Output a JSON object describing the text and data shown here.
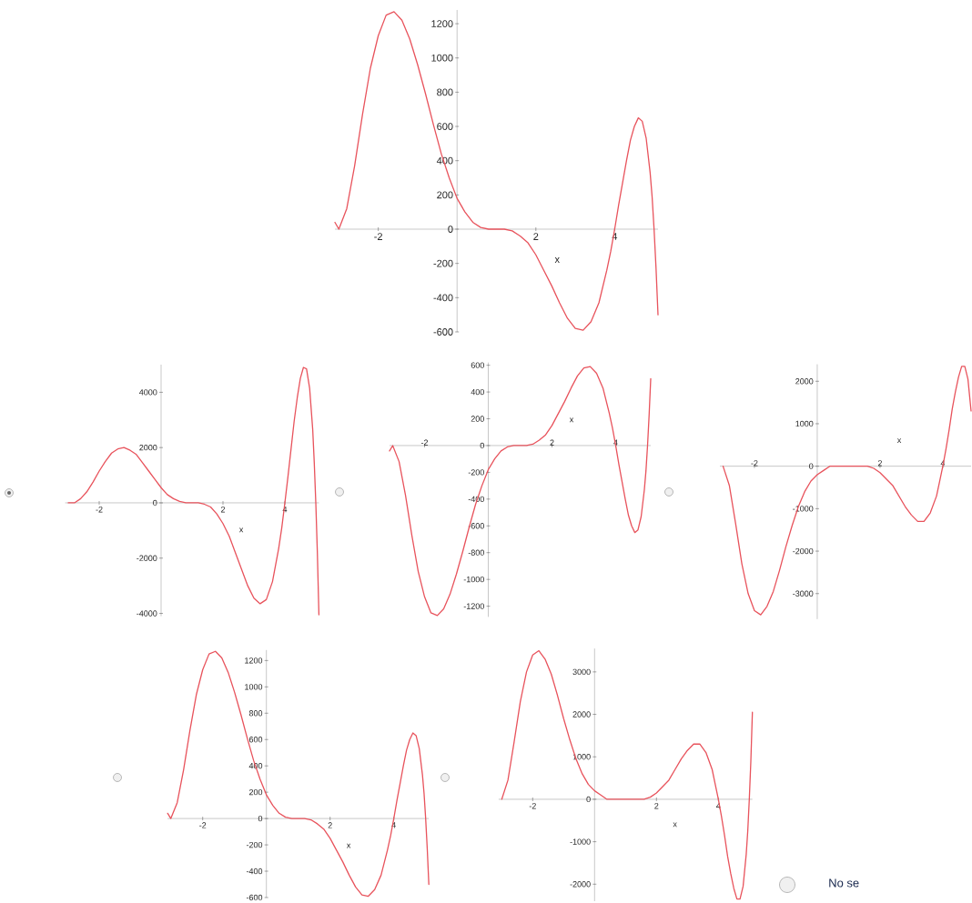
{
  "chart_data": [
    {
      "type": "line",
      "xlabel": "x",
      "xlim": [
        -3.1,
        5.1
      ],
      "ylim": [
        -600,
        1280
      ],
      "xticks": [
        -2,
        2,
        4
      ],
      "yticks": [
        -600,
        -400,
        -200,
        0,
        200,
        400,
        600,
        800,
        1000,
        1200
      ],
      "x": [
        -3.1,
        -3,
        -2.8,
        -2.6,
        -2.4,
        -2.2,
        -2,
        -1.8,
        -1.6,
        -1.4,
        -1.2,
        -1,
        -0.8,
        -0.6,
        -0.4,
        -0.2,
        0,
        0.2,
        0.4,
        0.6,
        0.8,
        1,
        1.2,
        1.4,
        1.6,
        1.8,
        2,
        2.2,
        2.4,
        2.6,
        2.8,
        3,
        3.2,
        3.4,
        3.6,
        3.8,
        3.9,
        4,
        4.1,
        4.2,
        4.3,
        4.4,
        4.5,
        4.6,
        4.7,
        4.8,
        4.9,
        4.95,
        5,
        5.05,
        5.1
      ],
      "series": [
        {
          "color": "#e8535c",
          "values": [
            40,
            0,
            120,
            370,
            670,
            940,
            1130,
            1250,
            1270,
            1220,
            1110,
            960,
            790,
            610,
            440,
            300,
            180,
            100,
            40,
            10,
            0,
            0,
            0,
            -10,
            -40,
            -80,
            -150,
            -240,
            -330,
            -430,
            -520,
            -580,
            -590,
            -540,
            -430,
            -240,
            -130,
            0,
            140,
            270,
            400,
            520,
            600,
            650,
            630,
            530,
            330,
            190,
            0,
            -230,
            -500
          ]
        }
      ]
    },
    {
      "type": "line",
      "xlabel": "x",
      "xlim": [
        -3.1,
        5.1
      ],
      "ylim": [
        -4100,
        5000
      ],
      "xticks": [
        -2,
        2,
        4
      ],
      "yticks": [
        -4000,
        -2000,
        0,
        2000,
        4000
      ],
      "x": [
        -3,
        -2.8,
        -2.6,
        -2.4,
        -2.2,
        -2,
        -1.8,
        -1.6,
        -1.4,
        -1.2,
        -1,
        -0.8,
        -0.6,
        -0.4,
        -0.2,
        0,
        0.2,
        0.4,
        0.6,
        0.8,
        1,
        1.2,
        1.4,
        1.6,
        1.8,
        2,
        2.2,
        2.4,
        2.6,
        2.8,
        3,
        3.2,
        3.4,
        3.6,
        3.8,
        3.9,
        4,
        4.1,
        4.2,
        4.3,
        4.4,
        4.5,
        4.6,
        4.7,
        4.8,
        4.9,
        4.95,
        5,
        5.05,
        5.1
      ],
      "series": [
        {
          "color": "#e8535c",
          "values": [
            0,
            0,
            150,
            400,
            750,
            1150,
            1500,
            1800,
            1950,
            2000,
            1900,
            1750,
            1450,
            1150,
            850,
            550,
            300,
            150,
            50,
            0,
            0,
            0,
            -50,
            -150,
            -400,
            -750,
            -1200,
            -1800,
            -2400,
            -3000,
            -3450,
            -3650,
            -3500,
            -2850,
            -1650,
            -900,
            0,
            950,
            1950,
            2950,
            3800,
            4500,
            4900,
            4850,
            4150,
            2650,
            1450,
            0,
            -1800,
            -4050
          ]
        }
      ]
    },
    {
      "type": "line",
      "xlabel": "x",
      "xlim": [
        -3.1,
        5.1
      ],
      "ylim": [
        -1280,
        620
      ],
      "xticks": [
        -2,
        2,
        4
      ],
      "yticks": [
        -1200,
        -1000,
        -800,
        -600,
        -400,
        -200,
        0,
        200,
        400,
        600
      ],
      "x": [
        -3.1,
        -3,
        -2.8,
        -2.6,
        -2.4,
        -2.2,
        -2,
        -1.8,
        -1.6,
        -1.4,
        -1.2,
        -1,
        -0.8,
        -0.6,
        -0.4,
        -0.2,
        0,
        0.2,
        0.4,
        0.6,
        0.8,
        1,
        1.2,
        1.4,
        1.6,
        1.8,
        2,
        2.2,
        2.4,
        2.6,
        2.8,
        3,
        3.2,
        3.4,
        3.6,
        3.8,
        3.9,
        4,
        4.1,
        4.2,
        4.3,
        4.4,
        4.5,
        4.6,
        4.7,
        4.8,
        4.9,
        4.95,
        5,
        5.05,
        5.1
      ],
      "series": [
        {
          "color": "#e8535c",
          "values": [
            -40,
            0,
            -120,
            -370,
            -670,
            -940,
            -1130,
            -1250,
            -1270,
            -1220,
            -1110,
            -960,
            -790,
            -610,
            -440,
            -300,
            -180,
            -100,
            -40,
            -10,
            0,
            0,
            0,
            10,
            40,
            80,
            150,
            240,
            330,
            430,
            520,
            580,
            590,
            540,
            430,
            240,
            130,
            0,
            -140,
            -270,
            -400,
            -520,
            -600,
            -650,
            -630,
            -530,
            -330,
            -190,
            0,
            230,
            500
          ]
        }
      ]
    },
    {
      "type": "line",
      "xlabel": "x",
      "xlim": [
        -3.1,
        4.9
      ],
      "ylim": [
        -3600,
        2400
      ],
      "xticks": [
        -2,
        2,
        4
      ],
      "yticks": [
        -3000,
        -2000,
        -1000,
        0,
        1000,
        2000
      ],
      "x": [
        -3,
        -2.8,
        -2.6,
        -2.4,
        -2.2,
        -2,
        -1.8,
        -1.6,
        -1.4,
        -1.2,
        -1,
        -0.8,
        -0.6,
        -0.4,
        -0.2,
        0,
        0.2,
        0.4,
        0.6,
        0.8,
        1,
        1.2,
        1.4,
        1.6,
        1.8,
        2,
        2.2,
        2.4,
        2.6,
        2.8,
        3,
        3.2,
        3.4,
        3.6,
        3.8,
        3.9,
        4,
        4.1,
        4.2,
        4.3,
        4.4,
        4.5,
        4.6,
        4.7,
        4.8,
        4.9
      ],
      "series": [
        {
          "color": "#e8535c",
          "values": [
            0,
            -450,
            -1350,
            -2300,
            -3000,
            -3400,
            -3500,
            -3300,
            -2950,
            -2450,
            -1900,
            -1400,
            -950,
            -600,
            -350,
            -200,
            -100,
            0,
            0,
            0,
            0,
            0,
            0,
            0,
            -50,
            -150,
            -300,
            -450,
            -700,
            -950,
            -1150,
            -1300,
            -1300,
            -1100,
            -700,
            -350,
            0,
            400,
            850,
            1350,
            1750,
            2100,
            2350,
            2350,
            2050,
            1300
          ]
        }
      ]
    },
    {
      "type": "line",
      "xlabel": "x",
      "xlim": [
        -3.1,
        5.1
      ],
      "ylim": [
        -600,
        1280
      ],
      "xticks": [
        -2,
        2,
        4
      ],
      "yticks": [
        -600,
        -400,
        -200,
        0,
        200,
        400,
        600,
        800,
        1000,
        1200
      ],
      "x": [
        -3.1,
        -3,
        -2.8,
        -2.6,
        -2.4,
        -2.2,
        -2,
        -1.8,
        -1.6,
        -1.4,
        -1.2,
        -1,
        -0.8,
        -0.6,
        -0.4,
        -0.2,
        0,
        0.2,
        0.4,
        0.6,
        0.8,
        1,
        1.2,
        1.4,
        1.6,
        1.8,
        2,
        2.2,
        2.4,
        2.6,
        2.8,
        3,
        3.2,
        3.4,
        3.6,
        3.8,
        3.9,
        4,
        4.1,
        4.2,
        4.3,
        4.4,
        4.5,
        4.6,
        4.7,
        4.8,
        4.9,
        4.95,
        5,
        5.05,
        5.1
      ],
      "series": [
        {
          "color": "#e8535c",
          "values": [
            40,
            0,
            120,
            370,
            670,
            940,
            1130,
            1250,
            1270,
            1220,
            1110,
            960,
            790,
            610,
            440,
            300,
            180,
            100,
            40,
            10,
            0,
            0,
            0,
            -10,
            -40,
            -80,
            -150,
            -240,
            -330,
            -430,
            -520,
            -580,
            -590,
            -540,
            -430,
            -240,
            -130,
            0,
            140,
            270,
            400,
            520,
            600,
            650,
            630,
            530,
            330,
            190,
            0,
            -230,
            -500
          ]
        }
      ]
    },
    {
      "type": "line",
      "xlabel": "x",
      "xlim": [
        -3.1,
        5.1
      ],
      "ylim": [
        -2400,
        3550
      ],
      "xticks": [
        -2,
        2,
        4
      ],
      "yticks": [
        -2000,
        -1000,
        0,
        1000,
        2000,
        3000
      ],
      "annotations": [
        "No se"
      ],
      "x": [
        -3,
        -2.8,
        -2.6,
        -2.4,
        -2.2,
        -2,
        -1.8,
        -1.6,
        -1.4,
        -1.2,
        -1,
        -0.8,
        -0.6,
        -0.4,
        -0.2,
        0,
        0.2,
        0.4,
        0.6,
        0.8,
        1,
        1.2,
        1.4,
        1.6,
        1.8,
        2,
        2.2,
        2.4,
        2.6,
        2.8,
        3,
        3.2,
        3.4,
        3.6,
        3.8,
        3.9,
        4,
        4.1,
        4.2,
        4.3,
        4.4,
        4.5,
        4.6,
        4.7,
        4.8,
        4.9,
        4.95,
        5,
        5.05,
        5.1
      ],
      "series": [
        {
          "color": "#e8535c",
          "values": [
            0,
            450,
            1350,
            2300,
            3000,
            3400,
            3500,
            3300,
            2950,
            2450,
            1900,
            1400,
            950,
            600,
            350,
            200,
            100,
            0,
            0,
            0,
            0,
            0,
            0,
            0,
            50,
            150,
            300,
            450,
            700,
            950,
            1150,
            1300,
            1300,
            1100,
            700,
            350,
            0,
            -400,
            -850,
            -1350,
            -1750,
            -2100,
            -2350,
            -2350,
            -2050,
            -1300,
            -750,
            0,
            900,
            2050
          ]
        }
      ]
    }
  ]
}
